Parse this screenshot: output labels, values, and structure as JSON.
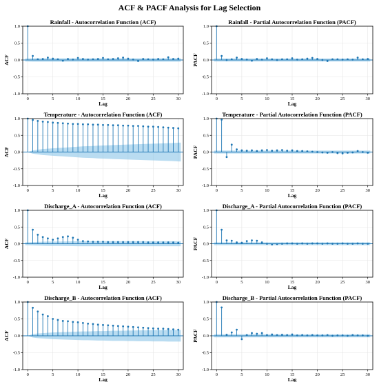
{
  "figure": {
    "title": "ACF & PACF Analysis for Lag Selection"
  },
  "colors": {
    "stem": "#1f77b4",
    "band": "#7fbfe6",
    "zero_line": "#1f77b4"
  },
  "chart_data": [
    {
      "type": "stem",
      "title": "Rainfall - Autocorrelation Function (ACF)",
      "xlabel": "Lag",
      "ylabel": "ACF",
      "xlim": [
        -1,
        31
      ],
      "ylim": [
        -1.0,
        1.0
      ],
      "xticks": [
        0,
        5,
        10,
        15,
        20,
        25,
        30
      ],
      "yticks": [
        -1.0,
        -0.5,
        0.0,
        0.5,
        1.0
      ],
      "lags": [
        0,
        1,
        2,
        3,
        4,
        5,
        6,
        7,
        8,
        9,
        10,
        11,
        12,
        13,
        14,
        15,
        16,
        17,
        18,
        19,
        20,
        21,
        22,
        23,
        24,
        25,
        26,
        27,
        28,
        29,
        30
      ],
      "values": [
        1.0,
        0.12,
        0.02,
        0.03,
        0.07,
        0.04,
        0.02,
        -0.02,
        0.03,
        0.01,
        0.06,
        0.03,
        0.01,
        0.02,
        0.03,
        0.06,
        0.02,
        0.03,
        0.05,
        0.07,
        0.04,
        0.01,
        -0.03,
        0.03,
        0.02,
        0.01,
        0.03,
        0.02,
        0.08,
        0.03,
        0.04
      ],
      "confidence_band": [
        0.045,
        0.05,
        0.05,
        0.05,
        0.05,
        0.05,
        0.05,
        0.05,
        0.05,
        0.05,
        0.05,
        0.05,
        0.05,
        0.05,
        0.05,
        0.05,
        0.05,
        0.05,
        0.05,
        0.05,
        0.05,
        0.05,
        0.05,
        0.05,
        0.05,
        0.05,
        0.05,
        0.05,
        0.05,
        0.05,
        0.05
      ]
    },
    {
      "type": "stem",
      "title": "Rainfall - Partial Autocorrelation Function (PACF)",
      "xlabel": "Lag",
      "ylabel": "PACF",
      "xlim": [
        -1,
        31
      ],
      "ylim": [
        -1.0,
        1.0
      ],
      "xticks": [
        0,
        5,
        10,
        15,
        20,
        25,
        30
      ],
      "yticks": [
        -1.0,
        -0.5,
        0.0,
        0.5,
        1.0
      ],
      "lags": [
        0,
        1,
        2,
        3,
        4,
        5,
        6,
        7,
        8,
        9,
        10,
        11,
        12,
        13,
        14,
        15,
        16,
        17,
        18,
        19,
        20,
        21,
        22,
        23,
        24,
        25,
        26,
        27,
        28,
        29,
        30
      ],
      "values": [
        1.0,
        0.12,
        0.0,
        0.02,
        0.07,
        0.03,
        0.01,
        -0.02,
        0.03,
        0.01,
        0.05,
        0.02,
        0.0,
        0.02,
        0.02,
        0.05,
        0.01,
        0.02,
        0.04,
        0.06,
        0.03,
        0.0,
        -0.03,
        0.02,
        0.02,
        0.01,
        0.02,
        0.01,
        0.07,
        0.02,
        0.03
      ],
      "confidence_band": [
        0.045,
        0.045,
        0.045,
        0.045,
        0.045,
        0.045,
        0.045,
        0.045,
        0.045,
        0.045,
        0.045,
        0.045,
        0.045,
        0.045,
        0.045,
        0.045,
        0.045,
        0.045,
        0.045,
        0.045,
        0.045,
        0.045,
        0.045,
        0.045,
        0.045,
        0.045,
        0.045,
        0.045,
        0.045,
        0.045,
        0.045
      ]
    },
    {
      "type": "stem",
      "title": "Temperature - Autocorrelation Function (ACF)",
      "xlabel": "Lag",
      "ylabel": "ACF",
      "xlim": [
        -1,
        31
      ],
      "ylim": [
        -1.0,
        1.0
      ],
      "xticks": [
        0,
        5,
        10,
        15,
        20,
        25,
        30
      ],
      "yticks": [
        -1.0,
        -0.5,
        0.0,
        0.5,
        1.0
      ],
      "lags": [
        0,
        1,
        2,
        3,
        4,
        5,
        6,
        7,
        8,
        9,
        10,
        11,
        12,
        13,
        14,
        15,
        16,
        17,
        18,
        19,
        20,
        21,
        22,
        23,
        24,
        25,
        26,
        27,
        28,
        29,
        30
      ],
      "values": [
        1.0,
        0.96,
        0.93,
        0.91,
        0.9,
        0.88,
        0.87,
        0.86,
        0.85,
        0.84,
        0.84,
        0.83,
        0.83,
        0.82,
        0.82,
        0.81,
        0.81,
        0.8,
        0.8,
        0.79,
        0.79,
        0.78,
        0.78,
        0.77,
        0.76,
        0.76,
        0.75,
        0.74,
        0.73,
        0.72,
        0.71
      ],
      "confidence_band": [
        0.0,
        0.05,
        0.07,
        0.09,
        0.1,
        0.11,
        0.12,
        0.13,
        0.14,
        0.15,
        0.16,
        0.17,
        0.175,
        0.18,
        0.19,
        0.195,
        0.2,
        0.21,
        0.215,
        0.22,
        0.225,
        0.23,
        0.235,
        0.24,
        0.245,
        0.25,
        0.255,
        0.26,
        0.265,
        0.27,
        0.28
      ]
    },
    {
      "type": "stem",
      "title": "Temperature - Partial Autocorrelation Function (PACF)",
      "xlabel": "Lag",
      "ylabel": "PACF",
      "xlim": [
        -1,
        31
      ],
      "ylim": [
        -1.0,
        1.0
      ],
      "xticks": [
        0,
        5,
        10,
        15,
        20,
        25,
        30
      ],
      "yticks": [
        -1.0,
        -0.5,
        0.0,
        0.5,
        1.0
      ],
      "lags": [
        0,
        1,
        2,
        3,
        4,
        5,
        6,
        7,
        8,
        9,
        10,
        11,
        12,
        13,
        14,
        15,
        16,
        17,
        18,
        19,
        20,
        21,
        22,
        23,
        24,
        25,
        26,
        27,
        28,
        29,
        30
      ],
      "values": [
        1.0,
        0.97,
        -0.15,
        0.22,
        0.08,
        0.05,
        0.04,
        0.05,
        0.03,
        0.05,
        0.06,
        0.04,
        0.05,
        0.06,
        0.04,
        0.05,
        0.03,
        0.03,
        0.02,
        0.01,
        0.0,
        -0.01,
        -0.02,
        0.0,
        -0.03,
        -0.04,
        -0.02,
        -0.01,
        0.03,
        0.0,
        -0.02
      ],
      "confidence_band": [
        0.045,
        0.045,
        0.045,
        0.045,
        0.045,
        0.045,
        0.045,
        0.045,
        0.045,
        0.045,
        0.045,
        0.045,
        0.045,
        0.045,
        0.045,
        0.045,
        0.045,
        0.045,
        0.045,
        0.045,
        0.045,
        0.045,
        0.045,
        0.045,
        0.045,
        0.045,
        0.045,
        0.045,
        0.045,
        0.045,
        0.045
      ]
    },
    {
      "type": "stem",
      "title": "Discharge_A - Autocorrelation Function (ACF)",
      "xlabel": "Lag",
      "ylabel": "ACF",
      "xlim": [
        -1,
        31
      ],
      "ylim": [
        -1.0,
        1.0
      ],
      "xticks": [
        0,
        5,
        10,
        15,
        20,
        25,
        30
      ],
      "yticks": [
        -1.0,
        -0.5,
        0.0,
        0.5,
        1.0
      ],
      "lags": [
        0,
        1,
        2,
        3,
        4,
        5,
        6,
        7,
        8,
        9,
        10,
        11,
        12,
        13,
        14,
        15,
        16,
        17,
        18,
        19,
        20,
        21,
        22,
        23,
        24,
        25,
        26,
        27,
        28,
        29,
        30
      ],
      "values": [
        1.0,
        0.42,
        0.27,
        0.2,
        0.16,
        0.12,
        0.16,
        0.2,
        0.22,
        0.18,
        0.12,
        0.08,
        0.07,
        0.06,
        0.06,
        0.06,
        0.05,
        0.05,
        0.05,
        0.05,
        0.05,
        0.05,
        0.05,
        0.05,
        0.04,
        0.04,
        0.04,
        0.04,
        0.04,
        0.04,
        0.03
      ],
      "confidence_band": [
        0.045,
        0.05,
        0.055,
        0.06,
        0.065,
        0.065,
        0.065,
        0.068,
        0.07,
        0.072,
        0.074,
        0.075,
        0.075,
        0.075,
        0.075,
        0.075,
        0.075,
        0.075,
        0.075,
        0.075,
        0.075,
        0.075,
        0.075,
        0.075,
        0.075,
        0.075,
        0.075,
        0.075,
        0.075,
        0.075,
        0.075
      ]
    },
    {
      "type": "stem",
      "title": "Discharge_A - Partial Autocorrelation Function (PACF)",
      "xlabel": "Lag",
      "ylabel": "PACF",
      "xlim": [
        -1,
        31
      ],
      "ylim": [
        -1.0,
        1.0
      ],
      "xticks": [
        0,
        5,
        10,
        15,
        20,
        25,
        30
      ],
      "yticks": [
        -1.0,
        -0.5,
        0.0,
        0.5,
        1.0
      ],
      "lags": [
        0,
        1,
        2,
        3,
        4,
        5,
        6,
        7,
        8,
        9,
        10,
        11,
        12,
        13,
        14,
        15,
        16,
        17,
        18,
        19,
        20,
        21,
        22,
        23,
        24,
        25,
        26,
        27,
        28,
        29,
        30
      ],
      "values": [
        1.0,
        0.42,
        0.1,
        0.09,
        0.04,
        0.03,
        0.08,
        0.1,
        0.09,
        0.04,
        0.0,
        -0.02,
        -0.01,
        0.0,
        0.01,
        0.01,
        0.0,
        0.01,
        0.0,
        0.01,
        0.01,
        0.0,
        0.01,
        0.0,
        0.0,
        0.01,
        0.0,
        0.0,
        0.01,
        0.0,
        0.0
      ],
      "confidence_band": [
        0.045,
        0.045,
        0.045,
        0.045,
        0.045,
        0.045,
        0.045,
        0.045,
        0.045,
        0.045,
        0.045,
        0.045,
        0.045,
        0.045,
        0.045,
        0.045,
        0.045,
        0.045,
        0.045,
        0.045,
        0.045,
        0.045,
        0.045,
        0.045,
        0.045,
        0.045,
        0.045,
        0.045,
        0.045,
        0.045,
        0.045
      ]
    },
    {
      "type": "stem",
      "title": "Discharge_B - Autocorrelation Function (ACF)",
      "xlabel": "Lag",
      "ylabel": "ACF",
      "xlim": [
        -1,
        31
      ],
      "ylim": [
        -1.0,
        1.0
      ],
      "xticks": [
        0,
        5,
        10,
        15,
        20,
        25,
        30
      ],
      "yticks": [
        -1.0,
        -0.5,
        0.0,
        0.5,
        1.0
      ],
      "lags": [
        0,
        1,
        2,
        3,
        4,
        5,
        6,
        7,
        8,
        9,
        10,
        11,
        12,
        13,
        14,
        15,
        16,
        17,
        18,
        19,
        20,
        21,
        22,
        23,
        24,
        25,
        26,
        27,
        28,
        29,
        30
      ],
      "values": [
        1.0,
        0.83,
        0.72,
        0.63,
        0.58,
        0.5,
        0.47,
        0.44,
        0.43,
        0.41,
        0.4,
        0.38,
        0.36,
        0.35,
        0.33,
        0.32,
        0.31,
        0.3,
        0.29,
        0.28,
        0.27,
        0.26,
        0.25,
        0.24,
        0.23,
        0.22,
        0.21,
        0.21,
        0.2,
        0.19,
        0.18
      ],
      "confidence_band": [
        0.0,
        0.05,
        0.07,
        0.08,
        0.09,
        0.1,
        0.105,
        0.11,
        0.115,
        0.12,
        0.125,
        0.13,
        0.13,
        0.135,
        0.14,
        0.14,
        0.145,
        0.15,
        0.15,
        0.15,
        0.155,
        0.155,
        0.16,
        0.16,
        0.16,
        0.165,
        0.165,
        0.165,
        0.17,
        0.17,
        0.17
      ]
    },
    {
      "type": "stem",
      "title": "Discharge_B - Partial Autocorrelation Function (PACF)",
      "xlabel": "Lag",
      "ylabel": "PACF",
      "xlim": [
        -1,
        31
      ],
      "ylim": [
        -1.0,
        1.0
      ],
      "xticks": [
        0,
        5,
        10,
        15,
        20,
        25,
        30
      ],
      "yticks": [
        -1.0,
        -0.5,
        0.0,
        0.5,
        1.0
      ],
      "lags": [
        0,
        1,
        2,
        3,
        4,
        5,
        6,
        7,
        8,
        9,
        10,
        11,
        12,
        13,
        14,
        15,
        16,
        17,
        18,
        19,
        20,
        21,
        22,
        23,
        24,
        25,
        26,
        27,
        28,
        29,
        30
      ],
      "values": [
        1.0,
        0.84,
        0.03,
        0.1,
        0.18,
        -0.1,
        0.02,
        0.08,
        0.06,
        0.08,
        0.02,
        0.04,
        0.02,
        0.03,
        0.02,
        0.04,
        0.01,
        0.02,
        0.01,
        0.02,
        0.01,
        0.01,
        0.02,
        0.0,
        0.01,
        0.01,
        0.0,
        0.02,
        0.01,
        0.01,
        0.0
      ],
      "confidence_band": [
        0.045,
        0.045,
        0.045,
        0.045,
        0.045,
        0.045,
        0.045,
        0.045,
        0.045,
        0.045,
        0.045,
        0.045,
        0.045,
        0.045,
        0.045,
        0.045,
        0.045,
        0.045,
        0.045,
        0.045,
        0.045,
        0.045,
        0.045,
        0.045,
        0.045,
        0.045,
        0.045,
        0.045,
        0.045,
        0.045,
        0.045
      ]
    }
  ]
}
